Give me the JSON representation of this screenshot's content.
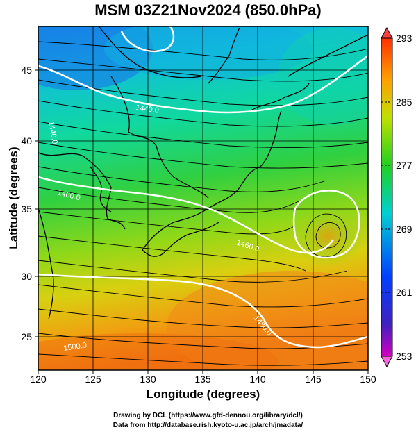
{
  "title": "MSM 03Z21Nov2024 (850.0hPa)",
  "xlabel": "Longitude (degrees)",
  "ylabel": "Latitude  (degrees)",
  "credits": [
    "Drawing by DCL (https://www.gfd-dennou.org/library/dcl/)",
    "Data from http://database.rish.kyoto-u.ac.jp/arch/jmadata/"
  ],
  "chart_data": {
    "type": "heatmap",
    "xlim": [
      120,
      150
    ],
    "ylim": [
      22.4,
      47.6
    ],
    "x_ticks": [
      120,
      125,
      130,
      135,
      140,
      145,
      150
    ],
    "y_ticks": [
      25,
      30,
      35,
      40,
      45
    ],
    "colorbar": {
      "range": [
        253,
        293
      ],
      "tick_labels": [
        "293",
        "285",
        "277",
        "269",
        "261",
        "253"
      ]
    },
    "contour_labels": [
      "1440.0",
      "1440.0",
      "1460.0",
      "1460.0",
      "1480.0",
      "1500.0"
    ]
  }
}
